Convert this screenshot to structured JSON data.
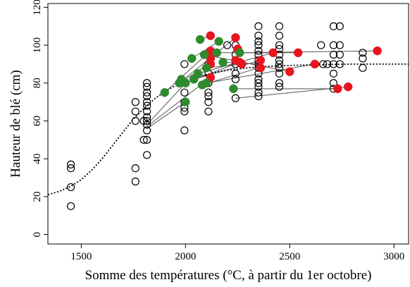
{
  "chart_data": {
    "type": "scatter",
    "title": "",
    "xlabel": "Somme des températures (°C, à partir du 1er octobre)",
    "ylabel": "Hauteur de blé (cm)",
    "xlim": [
      1340,
      3070
    ],
    "ylim": [
      -5,
      122
    ],
    "x_ticks": [
      1500,
      2000,
      2500,
      3000
    ],
    "y_ticks": [
      0,
      20,
      40,
      60,
      80,
      100,
      120
    ],
    "grid": false,
    "legend": "none",
    "colors": {
      "open": "#000000",
      "red": "#e8141e",
      "green": "#2e8b2e",
      "line": "#555555",
      "curve": "#000000"
    },
    "series": [
      {
        "kind": "open-circles",
        "points": [
          [
            1450,
            37
          ],
          [
            1450,
            35
          ],
          [
            1450,
            25
          ],
          [
            1450,
            15
          ],
          [
            1760,
            70
          ],
          [
            1760,
            65
          ],
          [
            1760,
            60
          ],
          [
            1760,
            35
          ],
          [
            1760,
            28
          ],
          [
            1800,
            60
          ],
          [
            1800,
            50
          ],
          [
            1815,
            80
          ],
          [
            1815,
            78
          ],
          [
            1815,
            75
          ],
          [
            1815,
            73
          ],
          [
            1815,
            70
          ],
          [
            1815,
            68
          ],
          [
            1815,
            65
          ],
          [
            1815,
            62
          ],
          [
            1815,
            60
          ],
          [
            1815,
            58
          ],
          [
            1815,
            55
          ],
          [
            1815,
            50
          ],
          [
            1815,
            42
          ],
          [
            1995,
            90
          ],
          [
            1995,
            75
          ],
          [
            1995,
            70
          ],
          [
            1995,
            67
          ],
          [
            1995,
            65
          ],
          [
            1995,
            55
          ],
          [
            2110,
            95
          ],
          [
            2110,
            90
          ],
          [
            2110,
            85
          ],
          [
            2110,
            80
          ],
          [
            2110,
            75
          ],
          [
            2110,
            73
          ],
          [
            2110,
            70
          ],
          [
            2110,
            65
          ],
          [
            2200,
            100
          ],
          [
            2240,
            100
          ],
          [
            2240,
            95
          ],
          [
            2240,
            90
          ],
          [
            2240,
            85
          ],
          [
            2240,
            82
          ],
          [
            2240,
            72
          ],
          [
            2350,
            110
          ],
          [
            2350,
            105
          ],
          [
            2350,
            102
          ],
          [
            2350,
            100
          ],
          [
            2350,
            97
          ],
          [
            2350,
            95
          ],
          [
            2350,
            92
          ],
          [
            2350,
            90
          ],
          [
            2350,
            88
          ],
          [
            2350,
            85
          ],
          [
            2350,
            82
          ],
          [
            2350,
            80
          ],
          [
            2350,
            78
          ],
          [
            2350,
            75
          ],
          [
            2350,
            73
          ],
          [
            2450,
            110
          ],
          [
            2450,
            105
          ],
          [
            2450,
            100
          ],
          [
            2450,
            98
          ],
          [
            2450,
            95
          ],
          [
            2450,
            92
          ],
          [
            2450,
            90
          ],
          [
            2450,
            88
          ],
          [
            2450,
            85
          ],
          [
            2450,
            80
          ],
          [
            2450,
            78
          ],
          [
            2650,
            100
          ],
          [
            2660,
            90
          ],
          [
            2680,
            90
          ],
          [
            2710,
            110
          ],
          [
            2710,
            100
          ],
          [
            2710,
            95
          ],
          [
            2710,
            90
          ],
          [
            2710,
            85
          ],
          [
            2710,
            80
          ],
          [
            2710,
            77
          ],
          [
            2740,
            110
          ],
          [
            2740,
            100
          ],
          [
            2740,
            95
          ],
          [
            2740,
            90
          ],
          [
            2850,
            96
          ],
          [
            2850,
            93
          ],
          [
            2850,
            88
          ]
        ]
      },
      {
        "kind": "red-dots",
        "points": [
          [
            2120,
            105
          ],
          [
            2120,
            97
          ],
          [
            2120,
            93
          ],
          [
            2120,
            90
          ],
          [
            2120,
            83
          ],
          [
            2240,
            104
          ],
          [
            2250,
            98
          ],
          [
            2240,
            92
          ],
          [
            2260,
            91
          ],
          [
            2270,
            90
          ],
          [
            2360,
            92
          ],
          [
            2360,
            88
          ],
          [
            2420,
            96
          ],
          [
            2500,
            86
          ],
          [
            2540,
            96
          ],
          [
            2620,
            90
          ],
          [
            2730,
            77
          ],
          [
            2780,
            78
          ],
          [
            2920,
            97
          ]
        ]
      },
      {
        "kind": "green-dots",
        "points": [
          [
            1900,
            75
          ],
          [
            1970,
            80
          ],
          [
            1980,
            82
          ],
          [
            2000,
            80
          ],
          [
            2000,
            70
          ],
          [
            2030,
            93
          ],
          [
            2040,
            82
          ],
          [
            2060,
            85
          ],
          [
            2070,
            103
          ],
          [
            2080,
            79
          ],
          [
            2090,
            95
          ],
          [
            2100,
            88
          ],
          [
            2100,
            80
          ],
          [
            2150,
            96
          ],
          [
            2160,
            102
          ],
          [
            2180,
            91
          ],
          [
            2230,
            77
          ],
          [
            2260,
            96
          ]
        ]
      }
    ],
    "connectors": [
      [
        [
          1815,
          58
        ],
        [
          2000,
          80
        ]
      ],
      [
        [
          1815,
          57
        ],
        [
          2120,
          83
        ]
      ],
      [
        [
          1815,
          56
        ],
        [
          2000,
          70
        ]
      ],
      [
        [
          1900,
          75
        ],
        [
          2120,
          97
        ]
      ],
      [
        [
          1970,
          80
        ],
        [
          2240,
          104
        ]
      ],
      [
        [
          2000,
          80
        ],
        [
          2260,
          91
        ]
      ],
      [
        [
          2030,
          93
        ],
        [
          2160,
          102
        ]
      ],
      [
        [
          2040,
          82
        ],
        [
          2360,
          92
        ]
      ],
      [
        [
          2060,
          85
        ],
        [
          2420,
          96
        ]
      ],
      [
        [
          2070,
          103
        ],
        [
          2120,
          105
        ]
      ],
      [
        [
          2080,
          79
        ],
        [
          2350,
          88
        ]
      ],
      [
        [
          2090,
          95
        ],
        [
          2500,
          86
        ]
      ],
      [
        [
          2100,
          88
        ],
        [
          2270,
          90
        ]
      ],
      [
        [
          2100,
          80
        ],
        [
          2620,
          90
        ]
      ],
      [
        [
          2150,
          96
        ],
        [
          2540,
          96
        ]
      ],
      [
        [
          2180,
          91
        ],
        [
          2350,
          90
        ]
      ],
      [
        [
          2230,
          77
        ],
        [
          2730,
          77
        ]
      ],
      [
        [
          2240,
          72
        ],
        [
          2780,
          78
        ]
      ],
      [
        [
          2260,
          96
        ],
        [
          2920,
          97
        ]
      ],
      [
        [
          2000,
          82
        ],
        [
          2110,
          90
        ]
      ]
    ],
    "fit_curve": [
      [
        1340,
        21
      ],
      [
        1400,
        23
      ],
      [
        1450,
        25.5
      ],
      [
        1500,
        29
      ],
      [
        1550,
        34
      ],
      [
        1600,
        40
      ],
      [
        1650,
        47
      ],
      [
        1700,
        54
      ],
      [
        1750,
        61
      ],
      [
        1800,
        66.5
      ],
      [
        1850,
        71.5
      ],
      [
        1900,
        75.5
      ],
      [
        1950,
        78.5
      ],
      [
        2000,
        81
      ],
      [
        2050,
        83
      ],
      [
        2100,
        84.5
      ],
      [
        2150,
        85.8
      ],
      [
        2200,
        86.8
      ],
      [
        2300,
        88
      ],
      [
        2400,
        88.8
      ],
      [
        2500,
        89.3
      ],
      [
        2600,
        89.6
      ],
      [
        2700,
        89.8
      ],
      [
        2800,
        90
      ],
      [
        3000,
        90
      ],
      [
        3070,
        90
      ]
    ]
  }
}
